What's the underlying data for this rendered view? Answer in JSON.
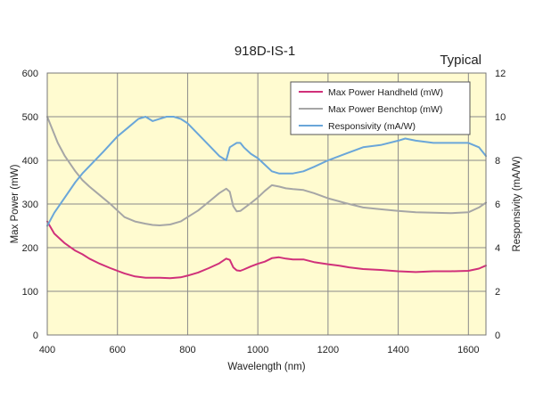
{
  "chart_data": {
    "type": "line",
    "title": "918D-IS-1",
    "annotation": "Typical",
    "xlabel": "Wavelength (nm)",
    "ylabel": "Max Power (mW)",
    "y2label": "Responsivity (mA/W)",
    "xlim": [
      400,
      1650
    ],
    "ylim": [
      0,
      600
    ],
    "y2lim": [
      0,
      12
    ],
    "xticks": [
      400,
      600,
      800,
      1000,
      1200,
      1400,
      1600
    ],
    "yticks": [
      0,
      100,
      200,
      300,
      400,
      500,
      600
    ],
    "y2ticks": [
      0,
      2,
      4,
      6,
      8,
      10,
      12
    ],
    "grid": true,
    "legend_position": "top-right",
    "colors": {
      "plot_background": "#FFFBD0",
      "grid": "#8A8A8A"
    },
    "series": [
      {
        "name": "Max Power Handheld (mW)",
        "axis": "left",
        "color": "#D0307A",
        "x": [
          400,
          420,
          450,
          480,
          500,
          520,
          550,
          580,
          600,
          620,
          650,
          680,
          700,
          720,
          750,
          780,
          800,
          830,
          860,
          890,
          910,
          920,
          930,
          940,
          950,
          960,
          980,
          1000,
          1020,
          1040,
          1060,
          1080,
          1100,
          1130,
          1160,
          1200,
          1230,
          1260,
          1300,
          1350,
          1400,
          1450,
          1500,
          1550,
          1600,
          1630,
          1650
        ],
        "y": [
          260,
          232,
          210,
          193,
          185,
          175,
          163,
          153,
          147,
          141,
          134,
          131,
          131,
          131,
          130,
          132,
          136,
          143,
          153,
          164,
          175,
          172,
          155,
          148,
          147,
          150,
          157,
          163,
          168,
          176,
          178,
          175,
          173,
          173,
          167,
          162,
          159,
          155,
          151,
          149,
          146,
          144,
          146,
          146,
          147,
          152,
          159
        ]
      },
      {
        "name": "Max Power Benchtop (mW)",
        "axis": "left",
        "color": "#A6A6A6",
        "x": [
          400,
          410,
          420,
          430,
          450,
          480,
          500,
          520,
          550,
          580,
          600,
          620,
          650,
          680,
          700,
          720,
          750,
          780,
          800,
          830,
          860,
          890,
          910,
          920,
          930,
          940,
          950,
          960,
          980,
          1000,
          1020,
          1040,
          1060,
          1080,
          1100,
          1130,
          1160,
          1200,
          1250,
          1300,
          1350,
          1400,
          1450,
          1500,
          1550,
          1600,
          1630,
          1650
        ],
        "y": [
          500,
          480,
          460,
          440,
          410,
          375,
          355,
          340,
          320,
          300,
          285,
          270,
          260,
          255,
          252,
          251,
          253,
          260,
          270,
          285,
          305,
          325,
          335,
          328,
          295,
          283,
          284,
          290,
          302,
          315,
          330,
          343,
          340,
          336,
          334,
          332,
          325,
          313,
          302,
          292,
          288,
          284,
          281,
          280,
          279,
          281,
          292,
          303
        ]
      },
      {
        "name": "Responsivity (mA/W)",
        "axis": "right",
        "color": "#6AA6D9",
        "x": [
          400,
          420,
          450,
          480,
          500,
          530,
          560,
          600,
          630,
          660,
          680,
          700,
          720,
          740,
          760,
          780,
          800,
          830,
          860,
          890,
          910,
          920,
          930,
          940,
          950,
          960,
          980,
          1000,
          1020,
          1040,
          1060,
          1080,
          1100,
          1130,
          1160,
          1200,
          1250,
          1300,
          1350,
          1400,
          1420,
          1450,
          1500,
          1550,
          1600,
          1630,
          1650
        ],
        "y": [
          5.0,
          5.6,
          6.3,
          7.0,
          7.4,
          7.9,
          8.4,
          9.1,
          9.5,
          9.9,
          10.0,
          9.8,
          9.9,
          10.0,
          10.0,
          9.9,
          9.7,
          9.2,
          8.7,
          8.2,
          8.0,
          8.6,
          8.7,
          8.8,
          8.8,
          8.6,
          8.3,
          8.1,
          7.8,
          7.5,
          7.4,
          7.4,
          7.4,
          7.5,
          7.7,
          8.0,
          8.3,
          8.6,
          8.7,
          8.9,
          9.0,
          8.9,
          8.8,
          8.8,
          8.8,
          8.6,
          8.2
        ]
      }
    ]
  }
}
